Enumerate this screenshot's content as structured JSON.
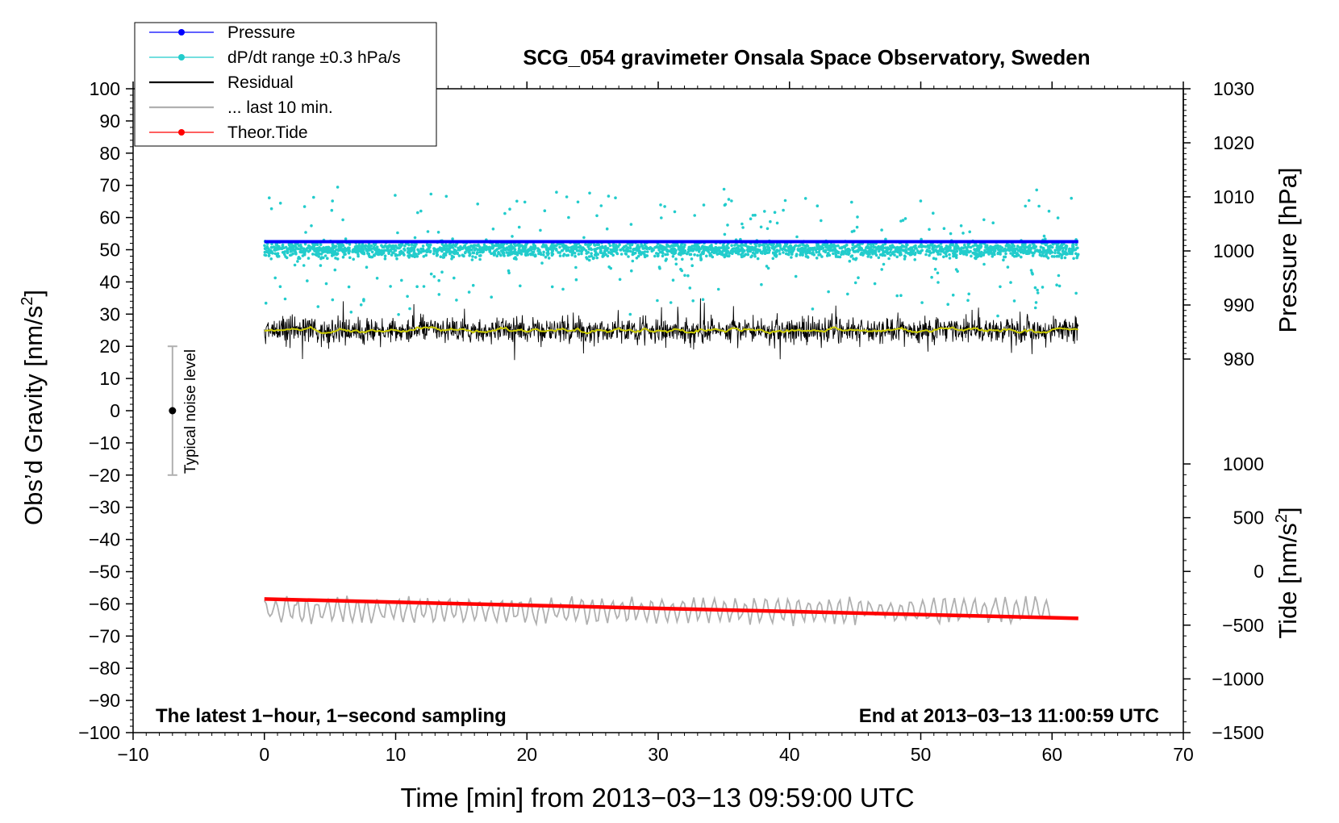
{
  "chart_data": {
    "type": "line",
    "title": "SCG_054 gravimeter Onsala Space Observatory, Sweden",
    "xlabel": "Time [min] from 2013−03−13 09:59:00 UTC",
    "ylabel": "Obs’d Gravity [nm/s²]",
    "ylabel_base": "Obs’d Gravity [nm/s",
    "ylabel_exp": "2",
    "ylabel_end": "]",
    "right_ylabel_pressure": "Pressure [hPa]",
    "right_ylabel_tide_base": "Tide [nm/s",
    "right_ylabel_tide_exp": "2",
    "right_ylabel_tide_end": "]",
    "xlim": [
      -10,
      70
    ],
    "ylim": [
      -100,
      100
    ],
    "xticks": [
      -10,
      0,
      10,
      20,
      30,
      40,
      50,
      60,
      70
    ],
    "xtick_labels": [
      "−10",
      "0",
      "10",
      "20",
      "30",
      "40",
      "50",
      "60",
      "70"
    ],
    "yticks": [
      100,
      90,
      80,
      70,
      60,
      50,
      40,
      30,
      20,
      10,
      0,
      -10,
      -20,
      -30,
      -40,
      -50,
      -60,
      -70,
      -80,
      -90,
      -100
    ],
    "ytick_labels": [
      "100",
      "90",
      "80",
      "70",
      "60",
      "50",
      "40",
      "30",
      "20",
      "10",
      "0",
      "−10",
      "−20",
      "−30",
      "−40",
      "−50",
      "−60",
      "−70",
      "−80",
      "−90",
      "−100"
    ],
    "pressure_axis": {
      "range": [
        980,
        1030
      ],
      "ticks": [
        1030,
        1020,
        1010,
        1000,
        990,
        980
      ],
      "tick_labels": [
        "1030",
        "1020",
        "1010",
        "1000",
        "990",
        "980"
      ]
    },
    "tide_axis": {
      "range": [
        -1500,
        1000
      ],
      "ticks": [
        1000,
        500,
        0,
        -500,
        -1000,
        -1500
      ],
      "tick_labels": [
        "1000",
        "500",
        "0",
        "−500",
        "−1000",
        "−1500"
      ]
    },
    "legend": {
      "placement": "top-left",
      "entries": [
        {
          "label": "Pressure",
          "color": "#0000ff",
          "marker": true
        },
        {
          "label": "dP/dt range ±0.3 hPa/s",
          "color": "#22cccc",
          "marker": true
        },
        {
          "label": "Residual",
          "color": "#000000",
          "marker": false
        },
        {
          "label": "... last 10 min.",
          "color": "#b0b0b0",
          "marker": false
        },
        {
          "label": "Theor.Tide",
          "color": "#ff0000",
          "marker": true
        }
      ]
    },
    "series": [
      {
        "name": "Pressure",
        "color": "#0000ff",
        "x": [
          0,
          62
        ],
        "y": [
          52.5,
          52.5
        ]
      },
      {
        "name": "dP/dt range ±0.3 hPa/s",
        "color": "#22cccc",
        "x_range": [
          0,
          62
        ],
        "center": 50,
        "spread": 3
      },
      {
        "name": "Residual",
        "color": "#000000",
        "x_range": [
          0,
          62
        ],
        "center": 25,
        "spread": 4
      },
      {
        "name": "... last 10 min.",
        "color": "#b0b0b0",
        "x_range": [
          0,
          60
        ],
        "center": -62,
        "spread": 3
      },
      {
        "name": "Theor.Tide",
        "color": "#ff0000",
        "x": [
          0,
          62
        ],
        "y": [
          -58.5,
          -64.5
        ]
      }
    ],
    "running_mean_color": "#cccc00",
    "noise_bar": {
      "label": "Typical noise level",
      "x": -7,
      "y": 0,
      "low": -20,
      "high": 20
    },
    "annotation_left": "The latest 1−hour, 1−second sampling",
    "annotation_right": "End at 2013−03−13 11:00:59 UTC",
    "grid": false
  }
}
